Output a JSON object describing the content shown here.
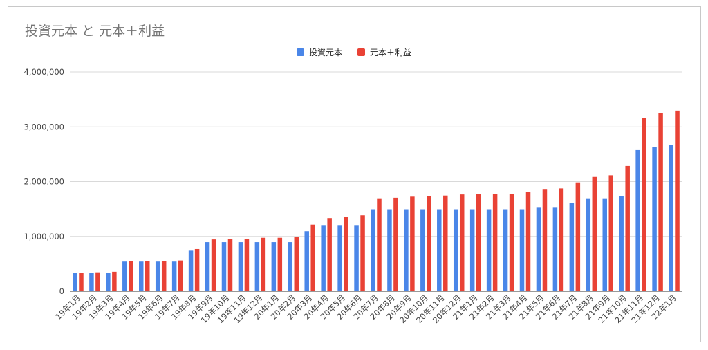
{
  "chart_data": {
    "type": "bar",
    "title": "投資元本 と 元本＋利益",
    "categories": [
      "19年1月",
      "19年2月",
      "19年3月",
      "19年4月",
      "19年5月",
      "19年6月",
      "19年7月",
      "19年8月",
      "19年9月",
      "19年10月",
      "19年11月",
      "19年12月",
      "20年1月",
      "20年2月",
      "20年3月",
      "20年4月",
      "20年5月",
      "20年6月",
      "20年7月",
      "20年8月",
      "20年9月",
      "20年10月",
      "20年11月",
      "20年12月",
      "21年1月",
      "21年2月",
      "21年3月",
      "21年4月",
      "21年5月",
      "21年6月",
      "21年7月",
      "21年8月",
      "21年9月",
      "21年10月",
      "21年11月",
      "21年12月",
      "22年1月"
    ],
    "series": [
      {
        "name": "投資元本",
        "color": "#4a86e8",
        "values": [
          335000,
          335000,
          335000,
          540000,
          540000,
          540000,
          540000,
          740000,
          895000,
          895000,
          895000,
          895000,
          895000,
          895000,
          1095000,
          1195000,
          1195000,
          1195000,
          1495000,
          1495000,
          1495000,
          1495000,
          1495000,
          1495000,
          1495000,
          1495000,
          1495000,
          1495000,
          1535000,
          1535000,
          1615000,
          1695000,
          1695000,
          1735000,
          2575000,
          2625000,
          2665000
        ]
      },
      {
        "name": "元本＋利益",
        "color": "#e94235",
        "values": [
          335000,
          345000,
          355000,
          555000,
          555000,
          550000,
          560000,
          770000,
          945000,
          955000,
          955000,
          975000,
          975000,
          985000,
          1215000,
          1335000,
          1355000,
          1385000,
          1695000,
          1705000,
          1725000,
          1735000,
          1745000,
          1765000,
          1775000,
          1775000,
          1775000,
          1805000,
          1865000,
          1875000,
          1985000,
          2085000,
          2115000,
          2285000,
          3165000,
          3245000,
          3295000
        ]
      }
    ],
    "ylim": [
      0,
      4000000
    ],
    "yticks": [
      0,
      1000000,
      2000000,
      3000000,
      4000000
    ],
    "ytick_labels": [
      "0",
      "1,000,000",
      "2,000,000",
      "3,000,000",
      "4,000,000"
    ],
    "grid": true,
    "legend_position": "top-center"
  }
}
